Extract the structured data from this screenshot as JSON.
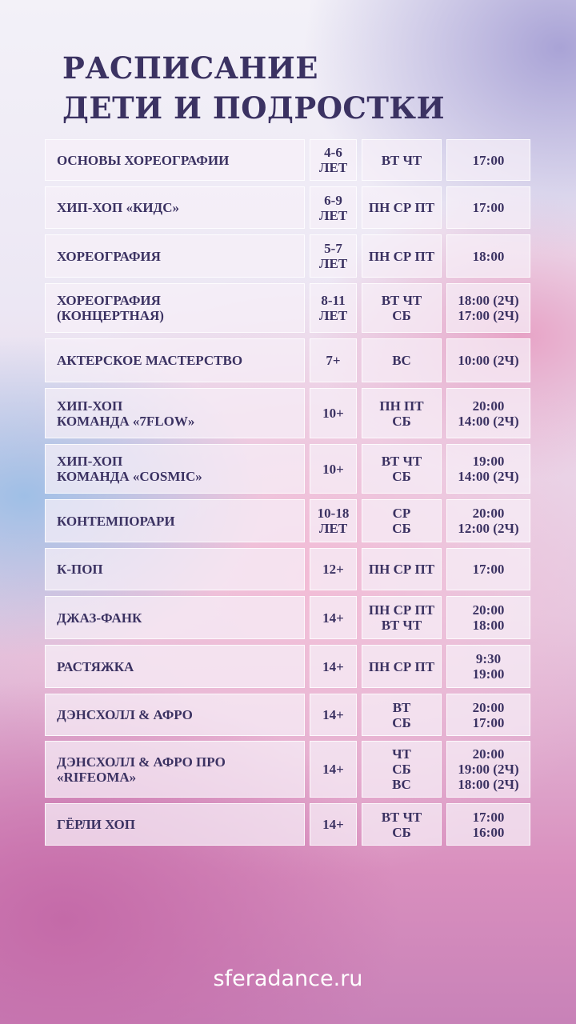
{
  "title": {
    "line1": "РАСПИСАНИЕ",
    "line2": "ДЕТИ И ПОДРОСТКИ"
  },
  "rows": [
    {
      "name": "ОСНОВЫ ХОРЕОГРАФИИ",
      "age": "4-6\nЛЕТ",
      "days": "ВТ ЧТ",
      "time": "17:00"
    },
    {
      "name": "ХИП-ХОП «КИДС»",
      "age": "6-9\nЛЕТ",
      "days": "ПН СР ПТ",
      "time": "17:00"
    },
    {
      "name": "ХОРЕОГРАФИЯ",
      "age": "5-7\nЛЕТ",
      "days": "ПН СР ПТ",
      "time": "18:00"
    },
    {
      "name": "ХОРЕОГРАФИЯ\n(КОНЦЕРТНАЯ)",
      "age": "8-11\nЛЕТ",
      "days": "ВТ ЧТ\nСБ",
      "time": "18:00 (2Ч)\n17:00 (2Ч)"
    },
    {
      "name": "АКТЕРСКОЕ МАСТЕРСТВО",
      "age": "7+",
      "days": "ВС",
      "time": "10:00 (2Ч)"
    },
    {
      "name": "ХИП-ХОП\nКОМАНДА «7FLOW»",
      "age": "10+",
      "days": "ПН ПТ\nСБ",
      "time": "20:00\n14:00 (2Ч)"
    },
    {
      "name": "ХИП-ХОП\nКОМАНДА «COSMIC»",
      "age": "10+",
      "days": "ВТ ЧТ\nСБ",
      "time": "19:00\n14:00 (2Ч)"
    },
    {
      "name": "КОНТЕМПОРАРИ",
      "age": "10-18\nЛЕТ",
      "days": "СР\nСБ",
      "time": "20:00\n12:00 (2Ч)"
    },
    {
      "name": "К-ПОП",
      "age": "12+",
      "days": "ПН СР ПТ",
      "time": "17:00"
    },
    {
      "name": "ДЖАЗ-ФАНК",
      "age": "14+",
      "days": "ПН СР ПТ\nВТ ЧТ",
      "time": "20:00\n18:00"
    },
    {
      "name": "РАСТЯЖКА",
      "age": "14+",
      "days": "ПН СР ПТ",
      "time": "9:30\n19:00"
    },
    {
      "name": "ДЭНСХОЛЛ & АФРО",
      "age": "14+",
      "days": "ВТ\nСБ",
      "time": "20:00\n17:00"
    },
    {
      "name": "ДЭНСХОЛЛ & АФРО ПРО\n«RIFEOMA»",
      "age": "14+",
      "days": "ЧТ\nСБ\nВС",
      "time": "20:00\n19:00 (2Ч)\n18:00 (2Ч)"
    },
    {
      "name": "ГЁРЛИ ХОП",
      "age": "14+",
      "days": "ВТ ЧТ\nСБ",
      "time": "17:00\n16:00"
    }
  ],
  "footer": {
    "website": "sferadance.ru"
  }
}
